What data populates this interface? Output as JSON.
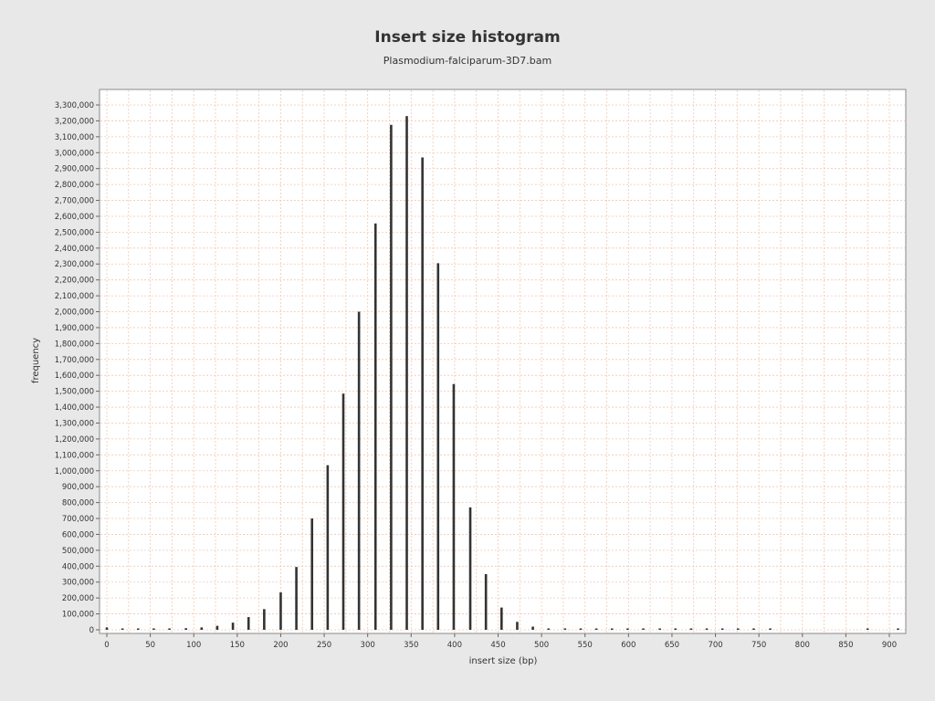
{
  "chart_data": {
    "type": "bar",
    "title": "Insert size histogram",
    "subtitle": "Plasmodium-falciparum-3D7.bam",
    "xlabel": "insert size (bp)",
    "ylabel": "frequency",
    "xlim": [
      -5,
      920
    ],
    "ylim": [
      0,
      3400000
    ],
    "x_ticks": [
      0,
      50,
      100,
      150,
      200,
      250,
      300,
      350,
      400,
      450,
      500,
      550,
      600,
      650,
      700,
      750,
      800,
      850,
      900
    ],
    "x_tick_labels": [
      "0",
      "50",
      "100",
      "150",
      "200",
      "250",
      "300",
      "350",
      "400",
      "450",
      "500",
      "550",
      "600",
      "650",
      "700",
      "750",
      "800",
      "850",
      "900"
    ],
    "y_ticks": [
      0,
      100000,
      200000,
      300000,
      400000,
      500000,
      600000,
      700000,
      800000,
      900000,
      1000000,
      1100000,
      1200000,
      1300000,
      1400000,
      1500000,
      1600000,
      1700000,
      1800000,
      1900000,
      2000000,
      2100000,
      2200000,
      2300000,
      2400000,
      2500000,
      2600000,
      2700000,
      2800000,
      2900000,
      3000000,
      3100000,
      3200000,
      3300000
    ],
    "y_tick_labels": [
      "0",
      "100,000",
      "200,000",
      "300,000",
      "400,000",
      "500,000",
      "600,000",
      "700,000",
      "800,000",
      "900,000",
      "1,000,000",
      "1,100,000",
      "1,200,000",
      "1,300,000",
      "1,400,000",
      "1,500,000",
      "1,600,000",
      "1,700,000",
      "1,800,000",
      "1,900,000",
      "2,000,000",
      "2,100,000",
      "2,200,000",
      "2,300,000",
      "2,400,000",
      "2,500,000",
      "2,600,000",
      "2,700,000",
      "2,800,000",
      "2,900,000",
      "3,000,000",
      "3,100,000",
      "3,200,000",
      "3,300,000"
    ],
    "grid": true,
    "x": [
      0,
      18,
      36,
      54,
      72,
      91,
      109,
      127,
      145,
      163,
      181,
      200,
      218,
      236,
      254,
      272,
      290,
      309,
      327,
      345,
      363,
      381,
      399,
      418,
      436,
      454,
      472,
      490,
      508,
      527,
      545,
      563,
      581,
      599,
      617,
      636,
      654,
      672,
      690,
      708,
      726,
      744,
      763,
      875,
      910
    ],
    "values": [
      15000,
      3000,
      3000,
      5000,
      8000,
      10000,
      15000,
      25000,
      45000,
      80000,
      130000,
      235000,
      395000,
      700000,
      1035000,
      1485000,
      2000000,
      2555000,
      3175000,
      3230000,
      2970000,
      2305000,
      1545000,
      770000,
      350000,
      140000,
      50000,
      20000,
      8000,
      3000,
      2000,
      2000,
      2000,
      2000,
      2000,
      2000,
      2000,
      2000,
      2000,
      2000,
      2000,
      2000,
      2000,
      2000,
      2000
    ]
  },
  "colors": {
    "background": "#e8e8e8",
    "plot_background": "#ffffff",
    "bar": "#333333",
    "grid": "#f2c8b0",
    "text": "#333333"
  }
}
